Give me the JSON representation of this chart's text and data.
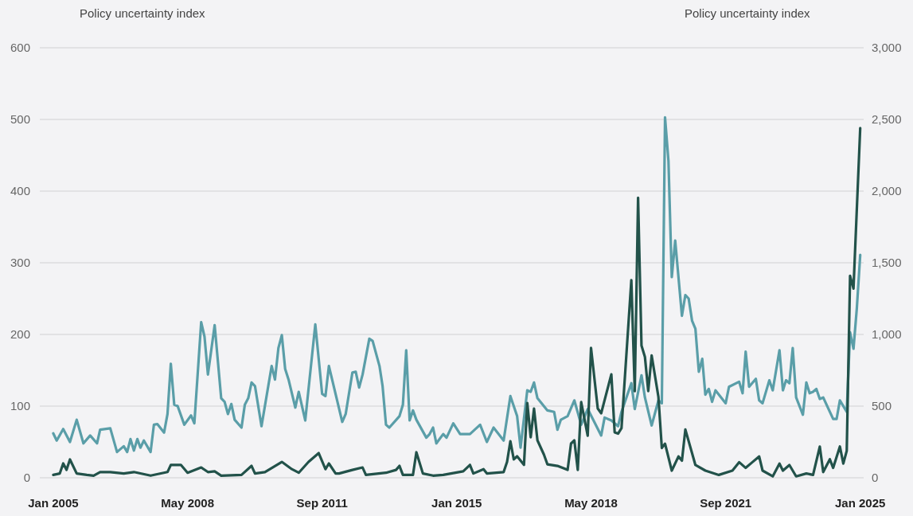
{
  "chart_data": {
    "type": "line",
    "ylabel": "Policy uncertainty index",
    "y2label": "Policy uncertainty index",
    "xlim": [
      "2004-09",
      "2025-02"
    ],
    "xticks": [
      {
        "value": "2005-01",
        "label": "Jan 2005"
      },
      {
        "value": "2008-05",
        "label": "May 2008"
      },
      {
        "value": "2011-09",
        "label": "Sep 2011"
      },
      {
        "value": "2015-01",
        "label": "Jan 2015"
      },
      {
        "value": "2018-05",
        "label": "May 2018"
      },
      {
        "value": "2021-09",
        "label": "Sep 2021"
      },
      {
        "value": "2025-01",
        "label": "Jan 2025"
      }
    ],
    "ylim": [
      0,
      600
    ],
    "yticks": [
      0,
      100,
      200,
      300,
      400,
      500,
      600
    ],
    "y2lim": [
      0,
      3000
    ],
    "y2ticks": [
      0,
      500,
      {
        "value": 1000,
        "label": "1,000"
      },
      {
        "value": 1500,
        "label": "1,500"
      },
      {
        "value": 2000,
        "label": "2,000"
      },
      {
        "value": 2500,
        "label": "2,500"
      },
      {
        "value": 3000,
        "label": "3,000"
      }
    ],
    "grid": "y",
    "marker": "none",
    "line_style": "solid",
    "series": [
      {
        "color": "#5a9ea8",
        "x": [
          "2005-01",
          "2005-02",
          "2005-04",
          "2005-06",
          "2005-08",
          "2005-10",
          "2005-12",
          "2006-02",
          "2006-03",
          "2006-06",
          "2006-08",
          "2006-10",
          "2006-11",
          "2006-12",
          "2007-01",
          "2007-02",
          "2007-03",
          "2007-04",
          "2007-06",
          "2007-07",
          "2007-08",
          "2007-10",
          "2007-11",
          "2007-12",
          "2008-01",
          "2008-02",
          "2008-04",
          "2008-06",
          "2008-07",
          "2008-09",
          "2008-10",
          "2008-11",
          "2009-01",
          "2009-03",
          "2009-04",
          "2009-05",
          "2009-06",
          "2009-07",
          "2009-09",
          "2009-10",
          "2009-11",
          "2009-12",
          "2010-01",
          "2010-03",
          "2010-06",
          "2010-07",
          "2010-08",
          "2010-09",
          "2010-10",
          "2010-11",
          "2011-01",
          "2011-02",
          "2011-04",
          "2011-07",
          "2011-09",
          "2011-10",
          "2011-11",
          "2012-03",
          "2012-04",
          "2012-06",
          "2012-07",
          "2012-08",
          "2012-09",
          "2012-11",
          "2012-12",
          "2013-02",
          "2013-03",
          "2013-04",
          "2013-05",
          "2013-08",
          "2013-09",
          "2013-10",
          "2013-11",
          "2013-12",
          "2014-01",
          "2014-04",
          "2014-05",
          "2014-06",
          "2014-07",
          "2014-09",
          "2014-10",
          "2014-12",
          "2015-02",
          "2015-05",
          "2015-08",
          "2015-10",
          "2015-12",
          "2016-03",
          "2016-05",
          "2016-07",
          "2016-08",
          "2016-10",
          "2016-11",
          "2016-12",
          "2017-01",
          "2017-04",
          "2017-06",
          "2017-07",
          "2017-08",
          "2017-10",
          "2017-12",
          "2018-02",
          "2018-04",
          "2018-08",
          "2018-09",
          "2018-11",
          "2019-01",
          "2019-02",
          "2019-05",
          "2019-06",
          "2019-08",
          "2019-09",
          "2019-11",
          "2020-01",
          "2020-02",
          "2020-03",
          "2020-04",
          "2020-05",
          "2020-06",
          "2020-08",
          "2020-09",
          "2020-10",
          "2020-11",
          "2020-12",
          "2021-01",
          "2021-02",
          "2021-03",
          "2021-04",
          "2021-05",
          "2021-06",
          "2021-09",
          "2021-10",
          "2022-01",
          "2022-02",
          "2022-03",
          "2022-04",
          "2022-06",
          "2022-07",
          "2022-08",
          "2022-10",
          "2022-11",
          "2023-01",
          "2023-02",
          "2023-03",
          "2023-04",
          "2023-05",
          "2023-06",
          "2023-08",
          "2023-09",
          "2023-10",
          "2023-11",
          "2023-12",
          "2024-01",
          "2024-02",
          "2024-05",
          "2024-06",
          "2024-07",
          "2024-09",
          "2024-10",
          "2024-11",
          "2024-12",
          "2025-01"
        ],
        "values": [
          62,
          52,
          68,
          50,
          81,
          48,
          59,
          48,
          67,
          69,
          36,
          44,
          36,
          54,
          38,
          54,
          42,
          52,
          36,
          74,
          75,
          63,
          89,
          159,
          102,
          100,
          74,
          87,
          76,
          217,
          197,
          144,
          213,
          111,
          106,
          89,
          103,
          81,
          70,
          102,
          111,
          133,
          128,
          72,
          156,
          137,
          181,
          199,
          152,
          137,
          98,
          120,
          80,
          214,
          117,
          114,
          156,
          78,
          89,
          147,
          148,
          126,
          144,
          194,
          191,
          156,
          128,
          74,
          70,
          86,
          102,
          178,
          80,
          94,
          81,
          56,
          61,
          70,
          48,
          61,
          56,
          76,
          61,
          61,
          74,
          50,
          70,
          52,
          114,
          86,
          42,
          122,
          120,
          133,
          111,
          94,
          92,
          67,
          81,
          86,
          108,
          74,
          96,
          59,
          84,
          80,
          72,
          92,
          132,
          96,
          143,
          112,
          73,
          108,
          104,
          503,
          442,
          280,
          331,
          226,
          255,
          250,
          219,
          208,
          148,
          166,
          116,
          124,
          106,
          122,
          104,
          127,
          134,
          118,
          176,
          127,
          138,
          108,
          104,
          136,
          122,
          178,
          122,
          136,
          132,
          181,
          112,
          88,
          133,
          118,
          120,
          124,
          110,
          112,
          82,
          82,
          108,
          92,
          203,
          180,
          236,
          311
        ]
      },
      {
        "color": "#22524a",
        "axis": "y2",
        "x": [
          "2005-01",
          "2005-03",
          "2005-04",
          "2005-05",
          "2005-06",
          "2005-08",
          "2005-11",
          "2006-01",
          "2006-03",
          "2006-06",
          "2006-10",
          "2007-01",
          "2007-06",
          "2007-11",
          "2007-12",
          "2008-03",
          "2008-05",
          "2008-09",
          "2008-11",
          "2009-01",
          "2009-03",
          "2009-09",
          "2009-12",
          "2010-01",
          "2010-04",
          "2010-09",
          "2010-12",
          "2011-02",
          "2011-05",
          "2011-08",
          "2011-10",
          "2011-11",
          "2012-01",
          "2012-02",
          "2012-06",
          "2012-09",
          "2012-10",
          "2013-04",
          "2013-07",
          "2013-08",
          "2013-09",
          "2013-12",
          "2014-01",
          "2014-03",
          "2014-06",
          "2014-09",
          "2015-03",
          "2015-05",
          "2015-06",
          "2015-09",
          "2015-10",
          "2016-03",
          "2016-04",
          "2016-05",
          "2016-06",
          "2016-07",
          "2016-09",
          "2016-10",
          "2016-11",
          "2016-12",
          "2017-01",
          "2017-03",
          "2017-04",
          "2017-07",
          "2017-10",
          "2017-11",
          "2017-12",
          "2018-01",
          "2018-02",
          "2018-04",
          "2018-05",
          "2018-07",
          "2018-08",
          "2018-11",
          "2018-12",
          "2019-01",
          "2019-02",
          "2019-05",
          "2019-06",
          "2019-07",
          "2019-08",
          "2019-09",
          "2019-10",
          "2019-11",
          "2020-01",
          "2020-02",
          "2020-03",
          "2020-05",
          "2020-07",
          "2020-08",
          "2020-09",
          "2020-12",
          "2021-03",
          "2021-07",
          "2021-11",
          "2022-01",
          "2022-03",
          "2022-05",
          "2022-07",
          "2022-08",
          "2022-11",
          "2023-01",
          "2023-02",
          "2023-04",
          "2023-06",
          "2023-09",
          "2023-11",
          "2024-01",
          "2024-02",
          "2024-04",
          "2024-05",
          "2024-07",
          "2024-08",
          "2024-09",
          "2024-10",
          "2024-11",
          "2025-01"
        ],
        "values": [
          20,
          30,
          100,
          55,
          128,
          30,
          20,
          15,
          40,
          40,
          30,
          40,
          15,
          40,
          90,
          90,
          35,
          72,
          40,
          45,
          15,
          20,
          83,
          30,
          40,
          111,
          60,
          35,
          111,
          172,
          60,
          100,
          30,
          30,
          55,
          72,
          20,
          35,
          55,
          83,
          20,
          20,
          178,
          30,
          15,
          20,
          45,
          90,
          30,
          60,
          30,
          40,
          111,
          255,
          128,
          150,
          90,
          522,
          283,
          483,
          261,
          161,
          94,
          83,
          55,
          239,
          261,
          55,
          528,
          294,
          906,
          483,
          450,
          722,
          317,
          308,
          347,
          1379,
          605,
          1954,
          922,
          843,
          605,
          853,
          565,
          208,
          238,
          50,
          149,
          119,
          337,
          89,
          50,
          20,
          50,
          109,
          69,
          109,
          149,
          50,
          10,
          99,
          50,
          89,
          10,
          30,
          20,
          218,
          40,
          129,
          69,
          218,
          99,
          188,
          1409,
          1320,
          2440
        ]
      }
    ]
  }
}
